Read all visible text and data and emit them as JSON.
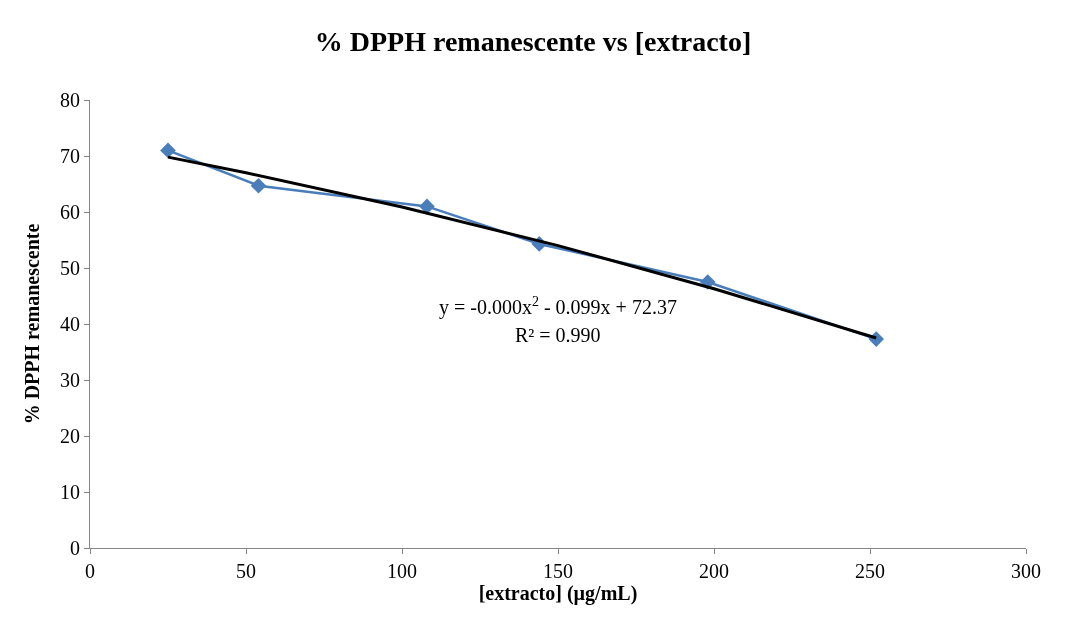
{
  "chart_data": {
    "type": "line",
    "title": "% DPPH remanescente vs [extracto]",
    "xlabel": "[extracto] (µg/mL)",
    "ylabel": "% DPPH remanescente",
    "x": [
      25,
      54,
      108,
      144,
      198,
      252
    ],
    "series": [
      {
        "color": "#4a7ebb",
        "values": [
          71,
          64.7,
          61,
          54.3,
          47.5,
          37.3
        ],
        "marker": "diamond"
      },
      {
        "type": "line",
        "color": "#000000",
        "x": [
          25,
          50,
          100,
          150,
          200,
          252
        ],
        "values": [
          69.8,
          67.0,
          60.9,
          54.0,
          46.3,
          37.5
        ],
        "marker": "none"
      }
    ],
    "xlim": [
      0,
      300
    ],
    "xticks": [
      0,
      50,
      100,
      150,
      200,
      250,
      300
    ],
    "ylim": [
      0,
      80
    ],
    "yticks": [
      0,
      10,
      20,
      30,
      40,
      50,
      60,
      70,
      80
    ],
    "annotations": [
      "y = -0.000x$^{2}$ - 0.099x + 72.37",
      "R² = 0.990"
    ]
  }
}
